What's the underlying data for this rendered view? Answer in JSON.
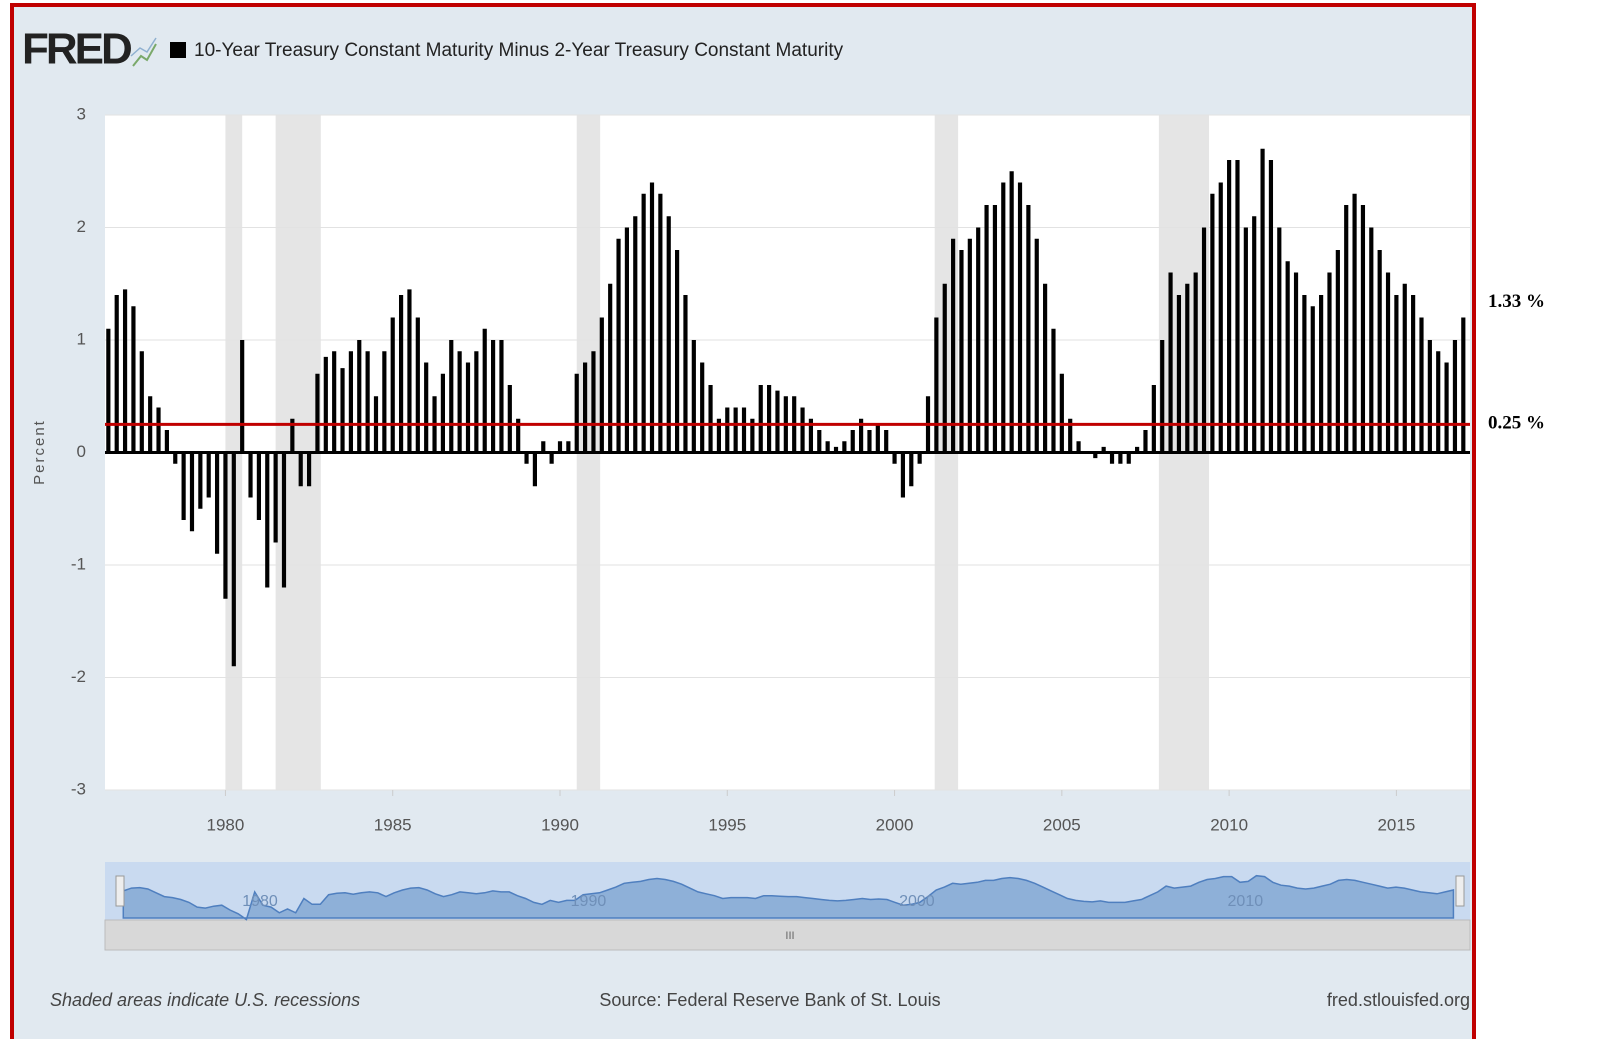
{
  "chart_data": {
    "type": "bar",
    "logo": "FRED",
    "title": "10-Year Treasury Constant Maturity Minus 2-Year Treasury Constant Maturity",
    "y_label": "Percent",
    "color": "#000000",
    "x": [
      1976.5,
      1976.75,
      1977,
      1977.25,
      1977.5,
      1977.75,
      1978,
      1978.25,
      1978.5,
      1978.75,
      1979,
      1979.25,
      1979.5,
      1979.75,
      1980,
      1980.25,
      1980.5,
      1980.75,
      1981,
      1981.25,
      1981.5,
      1981.75,
      1982,
      1982.25,
      1982.5,
      1982.75,
      1983,
      1983.25,
      1983.5,
      1983.75,
      1984,
      1984.25,
      1984.5,
      1984.75,
      1985,
      1985.25,
      1985.5,
      1985.75,
      1986,
      1986.25,
      1986.5,
      1986.75,
      1987,
      1987.25,
      1987.5,
      1987.75,
      1988,
      1988.25,
      1988.5,
      1988.75,
      1989,
      1989.25,
      1989.5,
      1989.75,
      1990,
      1990.25,
      1990.5,
      1990.75,
      1991,
      1991.25,
      1991.5,
      1991.75,
      1992,
      1992.25,
      1992.5,
      1992.75,
      1993,
      1993.25,
      1993.5,
      1993.75,
      1994,
      1994.25,
      1994.5,
      1994.75,
      1995,
      1995.25,
      1995.5,
      1995.75,
      1996,
      1996.25,
      1996.5,
      1996.75,
      1997,
      1997.25,
      1997.5,
      1997.75,
      1998,
      1998.25,
      1998.5,
      1998.75,
      1999,
      1999.25,
      1999.5,
      1999.75,
      2000,
      2000.25,
      2000.5,
      2000.75,
      2001,
      2001.25,
      2001.5,
      2001.75,
      2002,
      2002.25,
      2002.5,
      2002.75,
      2003,
      2003.25,
      2003.5,
      2003.75,
      2004,
      2004.25,
      2004.5,
      2004.75,
      2005,
      2005.25,
      2005.5,
      2005.75,
      2006,
      2006.25,
      2006.5,
      2006.75,
      2007,
      2007.25,
      2007.5,
      2007.75,
      2008,
      2008.25,
      2008.5,
      2008.75,
      2009,
      2009.25,
      2009.5,
      2009.75,
      2010,
      2010.25,
      2010.5,
      2010.75,
      2011,
      2011.25,
      2011.5,
      2011.75,
      2012,
      2012.25,
      2012.5,
      2012.75,
      2013,
      2013.25,
      2013.5,
      2013.75,
      2014,
      2014.25,
      2014.5,
      2014.75,
      2015,
      2015.25,
      2015.5,
      2015.75,
      2016,
      2016.25,
      2016.5,
      2016.75,
      2017
    ],
    "values": [
      1.1,
      1.4,
      1.45,
      1.3,
      0.9,
      0.5,
      0.4,
      0.2,
      -0.1,
      -0.6,
      -0.7,
      -0.5,
      -0.4,
      -0.9,
      -1.3,
      -1.9,
      1.0,
      -0.4,
      -0.6,
      -1.2,
      -0.8,
      -1.2,
      0.3,
      -0.3,
      -0.3,
      0.7,
      0.85,
      0.9,
      0.75,
      0.9,
      1.0,
      0.9,
      0.5,
      0.9,
      1.2,
      1.4,
      1.45,
      1.2,
      0.8,
      0.5,
      0.7,
      1.0,
      0.9,
      0.8,
      0.9,
      1.1,
      1.0,
      1.0,
      0.6,
      0.3,
      -0.1,
      -0.3,
      0.1,
      -0.1,
      0.1,
      0.1,
      0.7,
      0.8,
      0.9,
      1.2,
      1.5,
      1.9,
      2.0,
      2.1,
      2.3,
      2.4,
      2.3,
      2.1,
      1.8,
      1.4,
      1.0,
      0.8,
      0.6,
      0.3,
      0.4,
      0.4,
      0.4,
      0.3,
      0.6,
      0.6,
      0.55,
      0.5,
      0.5,
      0.4,
      0.3,
      0.2,
      0.1,
      0.05,
      0.1,
      0.2,
      0.3,
      0.2,
      0.25,
      0.2,
      -0.1,
      -0.4,
      -0.3,
      -0.1,
      0.5,
      1.2,
      1.5,
      1.9,
      1.8,
      1.9,
      2.0,
      2.2,
      2.2,
      2.4,
      2.5,
      2.4,
      2.2,
      1.9,
      1.5,
      1.1,
      0.7,
      0.3,
      0.1,
      0.0,
      -0.05,
      0.05,
      -0.1,
      -0.1,
      -0.1,
      0.05,
      0.2,
      0.6,
      1.0,
      1.6,
      1.4,
      1.5,
      1.6,
      2.0,
      2.3,
      2.4,
      2.6,
      2.6,
      2.0,
      2.1,
      2.7,
      2.6,
      2.0,
      1.7,
      1.6,
      1.4,
      1.3,
      1.4,
      1.6,
      1.8,
      2.2,
      2.3,
      2.2,
      2.0,
      1.8,
      1.6,
      1.4,
      1.5,
      1.4,
      1.2,
      1.0,
      0.9,
      0.8,
      1.0,
      1.2
    ],
    "recessions": [
      [
        1980.0,
        1980.5
      ],
      [
        1981.5,
        1982.85
      ],
      [
        1990.5,
        1991.2
      ],
      [
        2001.2,
        2001.9
      ],
      [
        2007.9,
        2009.4
      ]
    ],
    "xlim": [
      1976.4,
      2017.2
    ],
    "ylim": [
      -3,
      3
    ],
    "xticks": [
      1980,
      1985,
      1990,
      1995,
      2000,
      2005,
      2010,
      2015
    ],
    "yticks": [
      -3,
      -2,
      -1,
      0,
      1,
      2,
      3
    ],
    "grid": true,
    "reference_lines": [
      {
        "value": 0.25,
        "label": "0.25 %",
        "color": "#c00000"
      }
    ],
    "annotations": [
      {
        "value": 1.33,
        "label": "1.33 %"
      }
    ],
    "navigator_ticks": [
      1980,
      1990,
      2000,
      2010
    ],
    "scrollbar_grip": "III",
    "footer_left": "Shaded areas indicate U.S. recessions",
    "footer_center": "Source: Federal Reserve Bank of St. Louis",
    "footer_right": "fred.stlouisfed.org"
  }
}
